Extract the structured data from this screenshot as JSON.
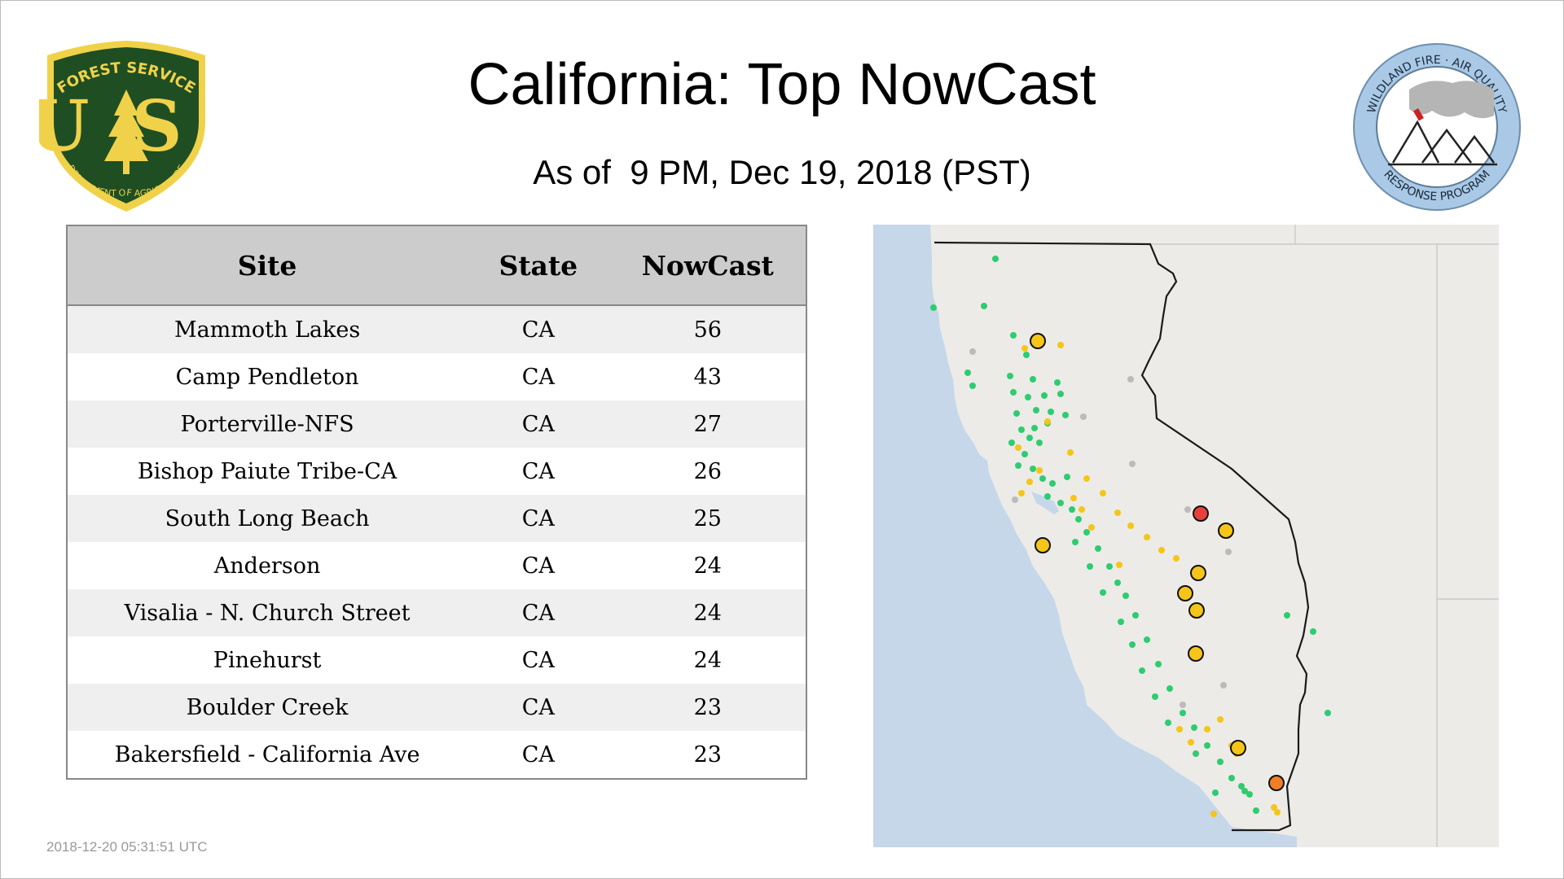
{
  "title": "California: Top NowCast",
  "subtitle": "As of  9 PM, Dec 19, 2018 (PST)",
  "timestamp": "2018-12-20 05:31:51 UTC",
  "logos": {
    "usfs": {
      "top_text": "FOREST SERVICE",
      "letters": "US",
      "bottom_text": "DEPARTMENT OF AGRICULTURE",
      "colors": {
        "shield": "#1f4e23",
        "gold": "#f0d24a"
      }
    },
    "wildland": {
      "top_text": "WILDLAND FIRE · AIR QUALITY",
      "bottom_text": "RESPONSE PROGRAM",
      "colors": {
        "ring": "#a9c9e6",
        "smoke": "#b5b5b5",
        "flag": "#cc2222"
      }
    }
  },
  "table": {
    "headers": {
      "site": "Site",
      "state": "State",
      "nowcast": "NowCast"
    },
    "rows": [
      {
        "site": "Mammoth Lakes",
        "state": "CA",
        "nowcast": "56"
      },
      {
        "site": "Camp Pendleton",
        "state": "CA",
        "nowcast": "43"
      },
      {
        "site": "Porterville-NFS",
        "state": "CA",
        "nowcast": "27"
      },
      {
        "site": "Bishop Paiute Tribe-CA",
        "state": "CA",
        "nowcast": "26"
      },
      {
        "site": "South Long Beach",
        "state": "CA",
        "nowcast": "25"
      },
      {
        "site": "Anderson",
        "state": "CA",
        "nowcast": "24"
      },
      {
        "site": "Visalia - N. Church Street",
        "state": "CA",
        "nowcast": "24"
      },
      {
        "site": "Pinehurst",
        "state": "CA",
        "nowcast": "24"
      },
      {
        "site": "Boulder Creek",
        "state": "CA",
        "nowcast": "23"
      },
      {
        "site": "Bakersfield - California Ave",
        "state": "CA",
        "nowcast": "23"
      }
    ]
  },
  "map": {
    "colors": {
      "ocean": "#c5d7e8",
      "land": "#ecebe8",
      "state_line": "#1a1a1a",
      "aqi_good": "#2ecc71",
      "aqi_moderate": "#f5c518",
      "aqi_usg": "#f07e26",
      "aqi_unhealthy": "#e8413c",
      "no_data": "#bbbbbb"
    }
  }
}
